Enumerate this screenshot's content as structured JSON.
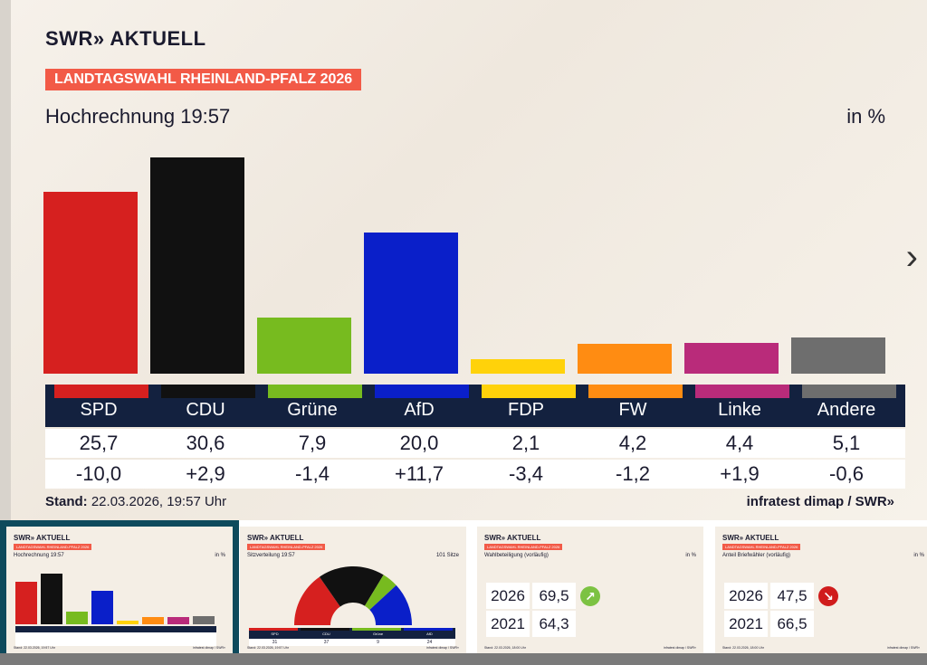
{
  "header": {
    "logo": "SWR» AKTUELL",
    "banner": "LANDTAGSWAHL RHEINLAND-PFALZ 2026",
    "title": "Hochrechnung 19:57",
    "unit": "in %"
  },
  "chart_data": {
    "type": "bar",
    "title": "Hochrechnung 19:57",
    "ylabel": "in %",
    "categories": [
      "SPD",
      "CDU",
      "Grüne",
      "AfD",
      "FDP",
      "FW",
      "Linke",
      "Andere"
    ],
    "values": [
      25.7,
      30.6,
      7.9,
      20.0,
      2.1,
      4.2,
      4.4,
      5.1
    ],
    "value_labels": [
      "25,7",
      "30,6",
      "7,9",
      "20,0",
      "2,1",
      "4,2",
      "4,4",
      "5,1"
    ],
    "changes": [
      "-10,0",
      "+2,9",
      "-1,4",
      "+11,7",
      "-3,4",
      "-1,2",
      "+1,9",
      "-0,6"
    ],
    "colors": [
      "#d6201f",
      "#111111",
      "#77bb1f",
      "#0a1fc9",
      "#ffd20a",
      "#ff8c12",
      "#b92b7a",
      "#6e6e6e"
    ],
    "ylim": [
      0,
      30.6
    ]
  },
  "footer": {
    "stand_label": "Stand:",
    "stand_value": "22.03.2026, 19:57 Uhr",
    "source": "infratest dimap / SWR»"
  },
  "nav": {
    "next_icon": "›"
  },
  "thumbs": [
    {
      "logo": "SWR» AKTUELL",
      "banner": "LANDTAGSWAHL RHEINLAND-PFALZ 2026",
      "title": "Hochrechnung 19:57",
      "unit": "in %",
      "stand": "Stand: 22.03.2026, 19:57 Uhr",
      "source": "infratest dimap / SWR»"
    },
    {
      "logo": "SWR» AKTUELL",
      "banner": "LANDTAGSWAHL RHEINLAND-PFALZ 2026",
      "title": "Sitzverteilung 19:57",
      "unit": "101 Sitze",
      "parties": [
        "SPD",
        "CDU",
        "Grüne",
        "AfD"
      ],
      "seats": [
        31,
        37,
        9,
        24
      ],
      "colors": [
        "#d6201f",
        "#111111",
        "#77bb1f",
        "#0a1fc9"
      ],
      "stand": "Stand: 22.03.2026, 19:57 Uhr",
      "source": "infratest dimap / SWR»"
    },
    {
      "logo": "SWR» AKTUELL",
      "banner": "LANDTAGSWAHL RHEINLAND-PFALZ 2026",
      "title": "Wahlbeteiligung (vorläufig)",
      "unit": "in %",
      "rows": [
        {
          "year": "2026",
          "value": "69,5"
        },
        {
          "year": "2021",
          "value": "64,3"
        }
      ],
      "trend": "up",
      "trend_color": "#7cc242",
      "stand": "Stand: 22.03.2026, 18:00 Uhr",
      "source": "infratest dimap / SWR»"
    },
    {
      "logo": "SWR» AKTUELL",
      "banner": "LANDTAGSWAHL RHEINLAND-PFALZ 2026",
      "title": "Anteil Briefwähler (vorläufig)",
      "unit": "in %",
      "rows": [
        {
          "year": "2026",
          "value": "47,5"
        },
        {
          "year": "2021",
          "value": "66,5"
        }
      ],
      "trend": "down",
      "trend_color": "#d01c1c",
      "stand": "Stand: 22.03.2026, 18:00 Uhr",
      "source": "infratest dimap / SWR»"
    }
  ]
}
